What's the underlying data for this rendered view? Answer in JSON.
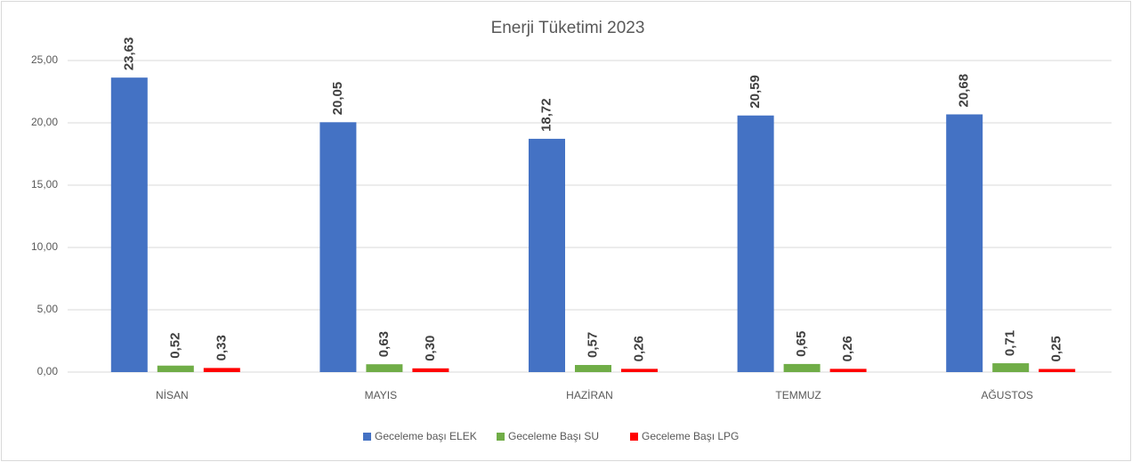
{
  "chart_data": {
    "type": "bar",
    "title": "Enerji Tüketimi  2023",
    "categories": [
      "NİSAN",
      "MAYIS",
      "HAZİRAN",
      "TEMMUZ",
      "AĞUSTOS"
    ],
    "series": [
      {
        "name": "Geceleme başı ELEK",
        "color": "#4472c4",
        "values": [
          23.63,
          20.05,
          18.72,
          20.59,
          20.68
        ],
        "value_labels": [
          "23,63",
          "20,05",
          "18,72",
          "20,59",
          "20,68"
        ]
      },
      {
        "name": "Geceleme Başı SU",
        "color": "#70ad47",
        "values": [
          0.52,
          0.63,
          0.57,
          0.65,
          0.71
        ],
        "value_labels": [
          "0,52",
          "0,63",
          "0,57",
          "0,65",
          "0,71"
        ]
      },
      {
        "name": "Geceleme Başı LPG",
        "color": "#ff0000",
        "values": [
          0.33,
          0.3,
          0.26,
          0.26,
          0.25
        ],
        "value_labels": [
          "0,33",
          "0,30",
          "0,26",
          "0,26",
          "0,25"
        ]
      }
    ],
    "ylim": [
      0,
      25
    ],
    "yticks": [
      {
        "value": 0,
        "label": "0,00"
      },
      {
        "value": 5,
        "label": "5,00"
      },
      {
        "value": 10,
        "label": "10,00"
      },
      {
        "value": 15,
        "label": "15,00"
      },
      {
        "value": 20,
        "label": "20,00"
      },
      {
        "value": 25,
        "label": "25,00"
      }
    ],
    "grid": true,
    "legend": "bottom"
  }
}
